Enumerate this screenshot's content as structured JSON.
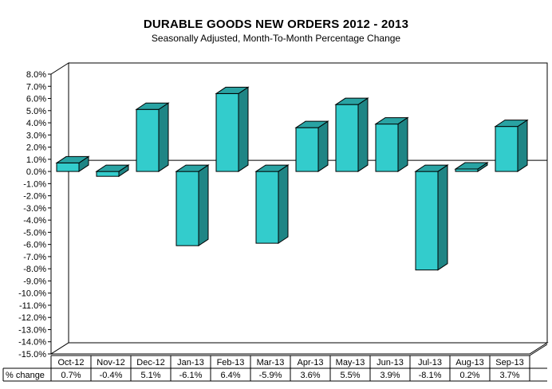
{
  "chart_data": {
    "type": "bar",
    "title": "DURABLE GOODS NEW ORDERS 2012 - 2013",
    "subtitle": "Seasonally Adjusted,  Month-To-Month Percentage Change",
    "categories": [
      "Oct-12",
      "Nov-12",
      "Dec-12",
      "Jan-13",
      "Feb-13",
      "Mar-13",
      "Apr-13",
      "May-13",
      "Jun-13",
      "Jul-13",
      "Aug-13",
      "Sep-13"
    ],
    "values": [
      0.7,
      -0.4,
      5.1,
      -6.1,
      6.4,
      -5.9,
      3.6,
      5.5,
      3.9,
      -8.1,
      0.2,
      3.7
    ],
    "value_labels": [
      "0.7%",
      "-0.4%",
      "5.1%",
      "-6.1%",
      "6.4%",
      "-5.9%",
      "3.6%",
      "5.5%",
      "3.9%",
      "-8.1%",
      "0.2%",
      "3.7%"
    ],
    "table_row_label": "% change",
    "ylim": [
      -15,
      8
    ],
    "ytick_step": 1,
    "ytick_labels": [
      "8.0%",
      "7.0%",
      "6.0%",
      "5.0%",
      "4.0%",
      "3.0%",
      "2.0%",
      "1.0%",
      "0.0%",
      "-1.0%",
      "-2.0%",
      "-3.0%",
      "-4.0%",
      "-5.0%",
      "-6.0%",
      "-7.0%",
      "-8.0%",
      "-9.0%",
      "-10.0%",
      "-11.0%",
      "-12.0%",
      "-13.0%",
      "-14.0%",
      "-15.0%"
    ],
    "grid": false,
    "three_d": true,
    "colors": {
      "bar_front": "#33CCCC",
      "bar_top": "#29A3A3",
      "bar_side": "#1F8585",
      "axis": "#000000"
    }
  }
}
